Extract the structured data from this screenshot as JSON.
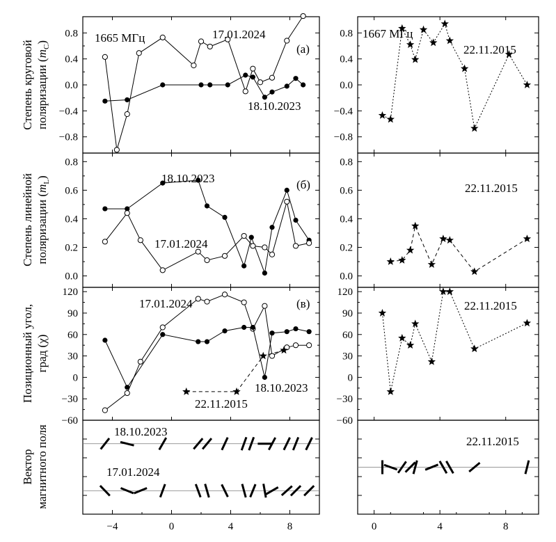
{
  "chart_data": [
    {
      "id": "a_left",
      "type": "scatter",
      "ylabel": "Степень круговой поляризации (m_C)",
      "ylim": [
        -1.05,
        1.05
      ],
      "yticks": [
        "0.8",
        "0.4",
        "0.0",
        "−0.4",
        "−0.8"
      ],
      "ytick_values": [
        0.8,
        0.4,
        0.0,
        -0.4,
        -0.8
      ],
      "xlim": [
        -6,
        10
      ],
      "annotations": [
        "1665 МГц",
        "17.01.2024",
        "18.10.2023",
        "(а)"
      ],
      "series": [
        {
          "name": "17.01.2024",
          "marker": "open-circle",
          "line": "solid",
          "x": [
            -4.5,
            -3.7,
            -3.0,
            -2.2,
            -0.6,
            1.5,
            2.0,
            2.6,
            3.8,
            5.0,
            5.5,
            6.0,
            6.8,
            7.8,
            8.9
          ],
          "y": [
            0.43,
            -1.0,
            -0.45,
            0.49,
            0.73,
            0.3,
            0.67,
            0.59,
            0.7,
            -0.1,
            0.25,
            0.04,
            0.11,
            0.68,
            1.06
          ]
        },
        {
          "name": "18.10.2023",
          "marker": "filled-circle",
          "line": "solid",
          "x": [
            -4.5,
            -3.0,
            -0.6,
            2.0,
            2.6,
            3.8,
            5.0,
            5.5,
            6.3,
            6.8,
            7.8,
            8.4,
            8.9
          ],
          "y": [
            -0.25,
            -0.23,
            0.0,
            0.0,
            0.0,
            0.0,
            0.15,
            0.12,
            -0.19,
            -0.11,
            -0.02,
            0.1,
            0.0
          ]
        }
      ]
    },
    {
      "id": "a_right",
      "type": "scatter",
      "ylim": [
        -1.05,
        1.05
      ],
      "yticks": [
        "0.8",
        "0.4",
        "0.0",
        "−0.4",
        "−0.8"
      ],
      "ytick_values": [
        0.8,
        0.4,
        0.0,
        -0.4,
        -0.8
      ],
      "xlim": [
        -1,
        10
      ],
      "annotations": [
        "1667 МГц",
        "22.11.2015"
      ],
      "series": [
        {
          "name": "22.11.2015",
          "marker": "star",
          "line": "dotted",
          "x": [
            0.5,
            1.0,
            1.7,
            2.2,
            2.5,
            3.0,
            3.6,
            4.3,
            4.6,
            5.5,
            6.1,
            8.2,
            9.3
          ],
          "y": [
            -0.47,
            -0.53,
            0.87,
            0.62,
            0.39,
            0.85,
            0.65,
            0.94,
            0.68,
            0.25,
            -0.67,
            0.47,
            0.0
          ]
        }
      ]
    },
    {
      "id": "b_left",
      "type": "scatter",
      "ylabel": "Степень линейной поляризации (m_L)",
      "ylim": [
        -0.08,
        0.86
      ],
      "yticks": [
        "0.8",
        "0.6",
        "0.4",
        "0.2",
        "0.0"
      ],
      "ytick_values": [
        0.8,
        0.6,
        0.4,
        0.2,
        0.0
      ],
      "xlim": [
        -6,
        10
      ],
      "annotations": [
        "18.10.2023",
        "17.01.2024",
        "(б)"
      ],
      "series": [
        {
          "name": "18.10.2023",
          "marker": "filled-circle",
          "line": "solid",
          "x": [
            -4.5,
            -3.0,
            -0.6,
            1.8,
            2.4,
            3.6,
            4.9,
            5.4,
            6.3,
            6.8,
            7.8,
            8.4,
            9.3
          ],
          "y": [
            0.47,
            0.47,
            0.65,
            0.67,
            0.49,
            0.41,
            0.07,
            0.27,
            0.02,
            0.34,
            0.6,
            0.39,
            0.25
          ]
        },
        {
          "name": "17.01.2024",
          "marker": "open-circle",
          "line": "solid",
          "x": [
            -4.5,
            -3.0,
            -2.1,
            -0.6,
            1.8,
            2.4,
            3.6,
            4.9,
            5.5,
            6.3,
            6.8,
            7.8,
            8.4,
            9.3
          ],
          "y": [
            0.24,
            0.44,
            0.25,
            0.04,
            0.17,
            0.11,
            0.14,
            0.28,
            0.21,
            0.2,
            0.15,
            0.52,
            0.21,
            0.23
          ]
        }
      ]
    },
    {
      "id": "b_right",
      "type": "scatter",
      "ylim": [
        -0.08,
        0.86
      ],
      "yticks": [
        "0.8",
        "0.6",
        "0.4",
        "0.2",
        "0.0"
      ],
      "ytick_values": [
        0.8,
        0.6,
        0.4,
        0.2,
        0.0
      ],
      "xlim": [
        -1,
        10
      ],
      "annotations": [
        "22.11.2015"
      ],
      "series": [
        {
          "name": "22.11.2015",
          "marker": "star",
          "line": "dashed",
          "x": [
            1.0,
            1.7,
            2.2,
            2.5,
            3.5,
            4.2,
            4.6,
            6.1,
            9.3
          ],
          "y": [
            0.1,
            0.11,
            0.18,
            0.35,
            0.08,
            0.26,
            0.25,
            0.03,
            0.26
          ]
        }
      ]
    },
    {
      "id": "c_left",
      "type": "scatter",
      "ylabel": "Позиционный угол, град (χ)",
      "ylim": [
        -60,
        126
      ],
      "yticks": [
        "120",
        "90",
        "60",
        "30",
        "0",
        "−30",
        "−60"
      ],
      "ytick_values": [
        120,
        90,
        60,
        30,
        0,
        -30,
        -60
      ],
      "xlim": [
        -6,
        10
      ],
      "annotations": [
        "17.01.2024",
        "22.11.2015",
        "18.10.2023",
        "(в)"
      ],
      "series": [
        {
          "name": "17.01.2024",
          "marker": "open-circle",
          "line": "solid",
          "x": [
            -4.5,
            -3.0,
            -2.1,
            -0.6,
            1.8,
            2.4,
            3.6,
            4.9,
            5.5,
            6.3,
            6.8,
            7.8,
            8.4,
            9.3
          ],
          "y": [
            -46,
            -22,
            22,
            70,
            110,
            106,
            116,
            105,
            68,
            100,
            30,
            42,
            45,
            45
          ]
        },
        {
          "name": "18.10.2023",
          "marker": "filled-circle",
          "line": "solid",
          "x": [
            -4.5,
            -3.0,
            -0.6,
            1.8,
            2.4,
            3.6,
            4.9,
            5.5,
            6.3,
            6.8,
            7.8,
            8.4,
            9.3
          ],
          "y": [
            52,
            -14,
            60,
            50,
            50,
            65,
            70,
            70,
            0,
            62,
            64,
            68,
            64
          ]
        },
        {
          "name": "22.11.2015",
          "marker": "star",
          "line": "dashed",
          "x": [
            1.0,
            4.4,
            6.2,
            7.6
          ],
          "y": [
            -20,
            -20,
            30,
            38
          ]
        }
      ]
    },
    {
      "id": "c_right",
      "type": "scatter",
      "ylim": [
        -60,
        126
      ],
      "yticks": [
        "120",
        "90",
        "60",
        "30",
        "0",
        "−30",
        "−60"
      ],
      "ytick_values": [
        120,
        90,
        60,
        30,
        0,
        -30,
        -60
      ],
      "xlim": [
        -1,
        10
      ],
      "annotations": [
        "22.11.2015"
      ],
      "series": [
        {
          "name": "22.11.2015",
          "marker": "star",
          "line": "dotted",
          "x": [
            0.5,
            1.0,
            1.7,
            2.2,
            2.5,
            3.5,
            4.2,
            4.6,
            6.1,
            9.3
          ],
          "y": [
            90,
            -20,
            55,
            45,
            75,
            22,
            120,
            120,
            40,
            76
          ]
        }
      ]
    },
    {
      "id": "d_left",
      "type": "vectors",
      "ylabel": "Вектор магнитного поля",
      "xlim": [
        -6,
        10
      ],
      "xticks": [
        "−4",
        "0",
        "4",
        "8"
      ],
      "xtick_values": [
        -4,
        0,
        4,
        8
      ],
      "annotations": [
        "18.10.2023",
        "17.01.2024"
      ],
      "rows": [
        {
          "name": "18.10.2023",
          "level": 0.75,
          "x": [
            -4.5,
            -3.0,
            -0.6,
            1.8,
            2.4,
            3.6,
            4.9,
            5.4,
            6.3,
            6.8,
            7.8,
            8.4,
            9.3
          ],
          "angle": [
            52,
            -14,
            60,
            50,
            50,
            65,
            70,
            70,
            0,
            62,
            64,
            68,
            64
          ]
        },
        {
          "name": "17.01.2024",
          "level": 0.25,
          "x": [
            -4.5,
            -3.0,
            -2.1,
            -0.6,
            1.8,
            2.4,
            3.6,
            4.9,
            5.5,
            6.3,
            6.8,
            7.8,
            8.4,
            9.3
          ],
          "angle": [
            -46,
            -22,
            22,
            70,
            110,
            106,
            116,
            105,
            68,
            100,
            30,
            42,
            45,
            45
          ]
        }
      ]
    },
    {
      "id": "d_right",
      "type": "vectors",
      "xlim": [
        -1,
        10
      ],
      "xticks": [
        "0",
        "4",
        "8"
      ],
      "xtick_values": [
        0,
        4,
        8
      ],
      "annotations": [
        "22.11.2015"
      ],
      "rows": [
        {
          "name": "22.11.2015",
          "level": 0.5,
          "x": [
            0.5,
            1.0,
            1.7,
            2.2,
            2.5,
            3.5,
            4.2,
            4.6,
            6.1,
            9.3
          ],
          "angle": [
            90,
            -20,
            55,
            45,
            75,
            22,
            120,
            120,
            40,
            76
          ]
        }
      ]
    }
  ]
}
